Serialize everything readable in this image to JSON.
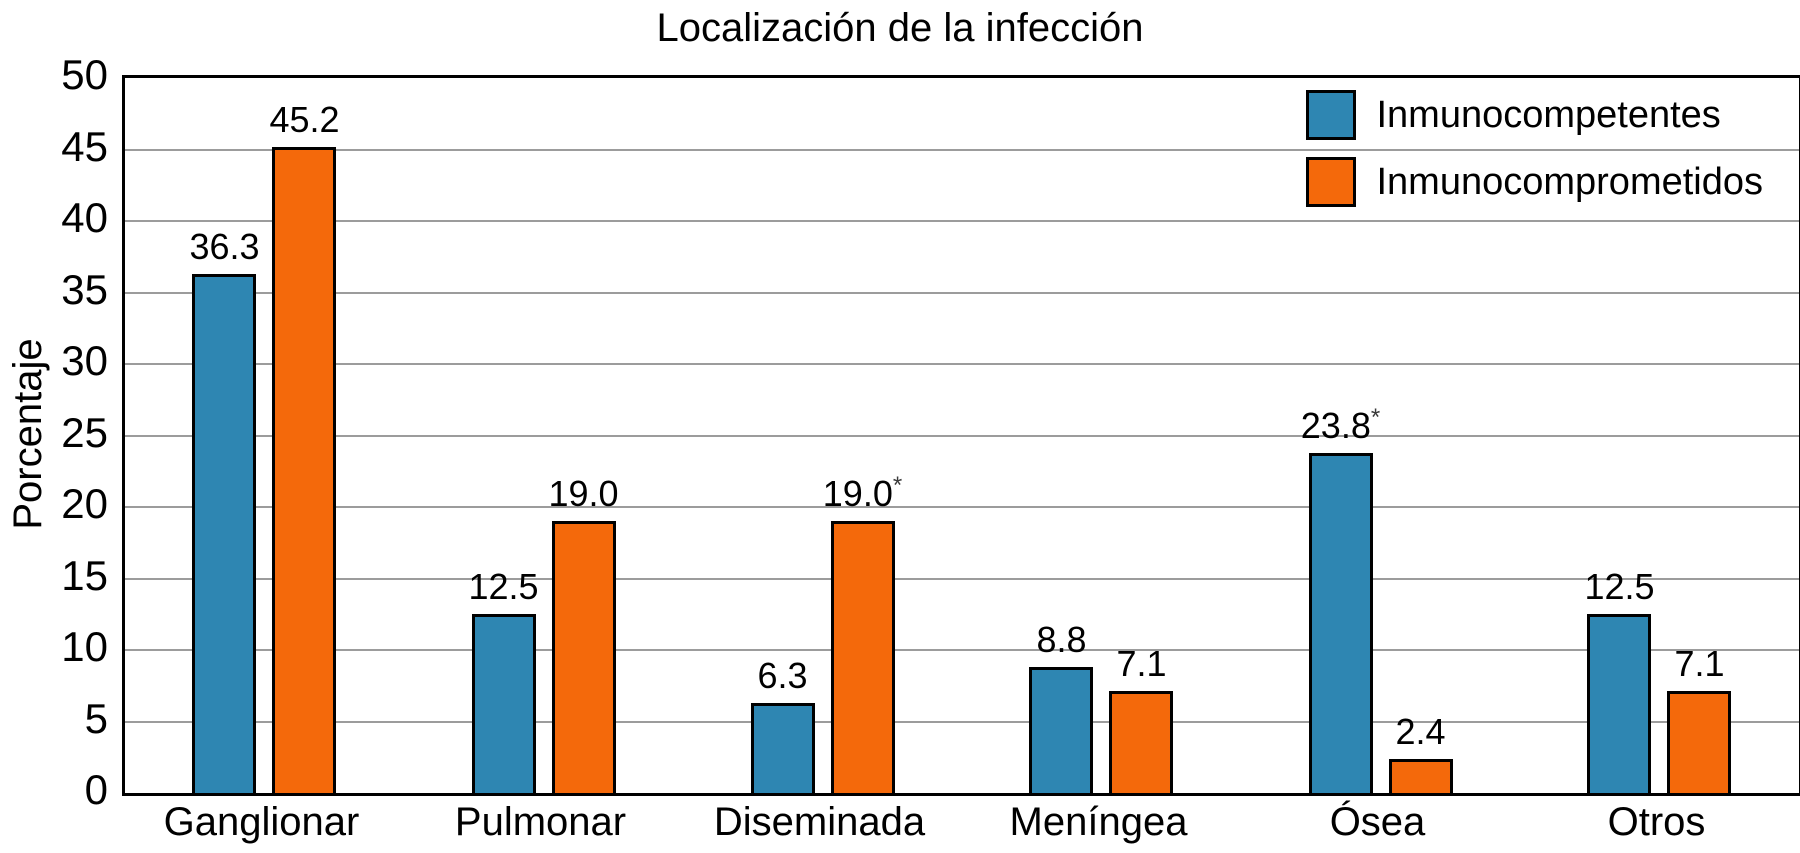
{
  "chart_data": {
    "type": "bar",
    "title": "Localización de la infección",
    "xlabel": "",
    "ylabel": "Porcentaje",
    "ylim": [
      0,
      50
    ],
    "ytick_step": 5,
    "grid": true,
    "grid_color": "#9c9c9c",
    "legend_position": "upper right",
    "categories": [
      "Ganglionar",
      "Pulmonar",
      "Diseminada",
      "Meníngea",
      "Ósea",
      "Otros"
    ],
    "series": [
      {
        "name": "Inmunocompetentes",
        "color": "#2E86B2",
        "values": [
          36.3,
          12.5,
          6.3,
          8.8,
          23.8,
          12.5
        ],
        "labels": [
          "36.3",
          "12.5",
          "6.3",
          "8.8",
          "23.8*",
          "12.5"
        ]
      },
      {
        "name": "Inmunocomprometidos",
        "color": "#F4690B",
        "values": [
          45.2,
          19.0,
          19.0,
          7.1,
          2.4,
          7.1
        ],
        "labels": [
          "45.2",
          "19.0",
          "19.0*",
          "7.1",
          "2.4",
          "7.1"
        ]
      }
    ],
    "annotation_note": "*"
  }
}
